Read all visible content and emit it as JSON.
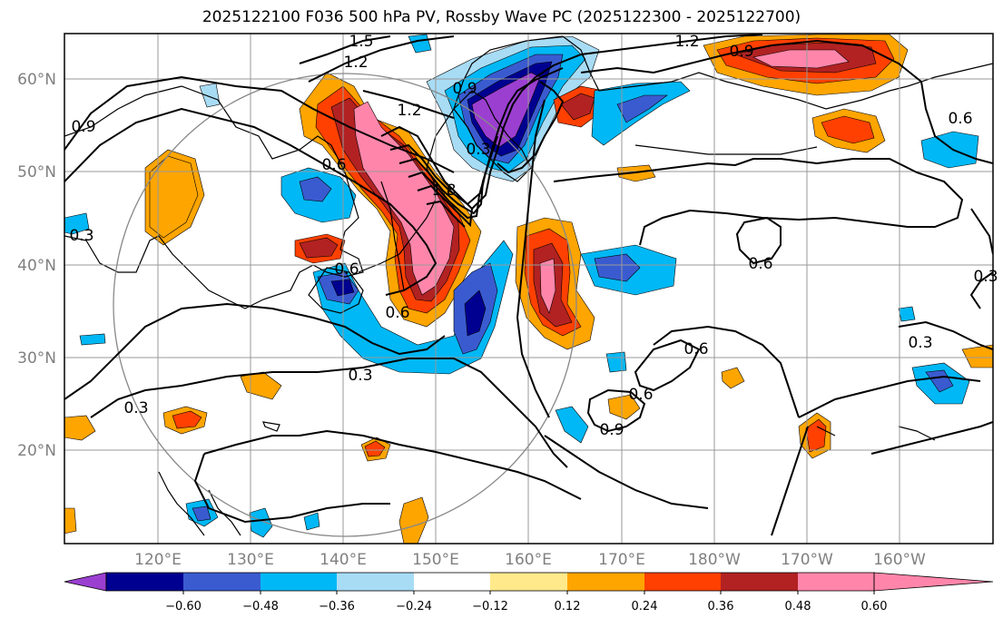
{
  "title": "2025122100 F036 500 hPa PV, Rossby Wave PC (2025122300 - 2025122700)",
  "map": {
    "lat_labels": [
      "60°N",
      "50°N",
      "40°N",
      "30°N",
      "20°N"
    ],
    "lon_labels": [
      "120°E",
      "130°E",
      "140°E",
      "150°E",
      "160°E",
      "170°E",
      "180°W",
      "170°W",
      "160°W"
    ],
    "contour_labels": [
      "1.5",
      "1.2",
      "1.2",
      "1.2",
      "0.9",
      "0.9",
      "0.9",
      "0.6",
      "0.6",
      "0.6",
      "0.6",
      "0.6",
      "0.6",
      "0.6",
      "0.3",
      "0.3",
      "0.3",
      "0.3",
      "0.3",
      "1.8",
      "0.9",
      "0.3"
    ]
  },
  "colorbar": {
    "ticks": [
      "−0.60",
      "−0.48",
      "−0.36",
      "−0.24",
      "−0.12",
      "0.12",
      "0.24",
      "0.36",
      "0.48",
      "0.60"
    ],
    "colors": [
      "#9b3fd1",
      "#000090",
      "#3a5bd0",
      "#00b8f5",
      "#a8dcf5",
      "#ffffff",
      "#ffe98a",
      "#ffa500",
      "#ff4000",
      "#b22222",
      "#ff86aa"
    ],
    "under_color": "#9b3fd1",
    "over_color": "#ff86aa"
  }
}
